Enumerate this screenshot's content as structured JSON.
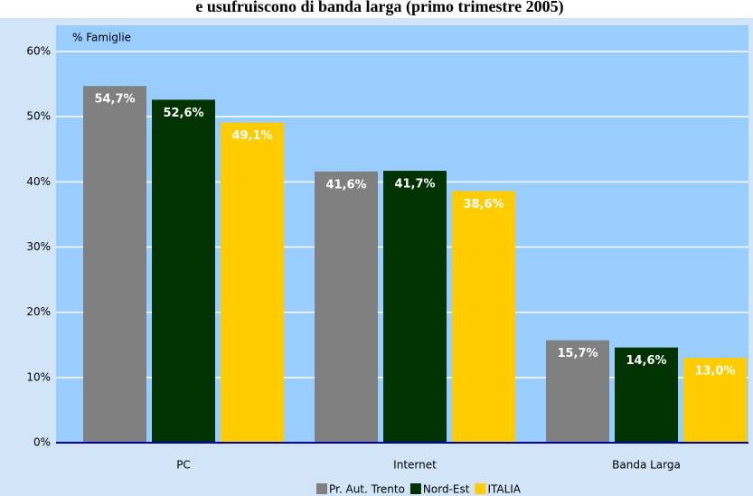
{
  "chart_data": {
    "type": "bar",
    "title": "e usufruiscono di banda larga (primo trimestre 2005)",
    "y_label": "% Famiglie",
    "categories": [
      "PC",
      "Internet",
      "Banda Larga"
    ],
    "series": [
      {
        "name": "Pr. Aut. Trento",
        "color": "#808080",
        "values": [
          54.7,
          41.6,
          15.7
        ],
        "value_labels": [
          "54,7%",
          "41,6%",
          "15,7%"
        ]
      },
      {
        "name": "Nord-Est",
        "color": "#003300",
        "values": [
          52.6,
          41.7,
          14.6
        ],
        "value_labels": [
          "52,6%",
          "41,7%",
          "14,6%"
        ]
      },
      {
        "name": "ITALIA",
        "color": "#ffcc00",
        "values": [
          49.1,
          38.6,
          13.0
        ],
        "value_labels": [
          "49,1%",
          "38,6%",
          "13,0%"
        ]
      }
    ],
    "ylim": [
      0,
      60
    ],
    "yticks": [
      {
        "value": 0,
        "label": "0%"
      },
      {
        "value": 10,
        "label": "10%"
      },
      {
        "value": 20,
        "label": "20%"
      },
      {
        "value": 30,
        "label": "30%"
      },
      {
        "value": 40,
        "label": "40%"
      },
      {
        "value": 50,
        "label": "50%"
      },
      {
        "value": 60,
        "label": "60%"
      }
    ],
    "grid": true
  }
}
